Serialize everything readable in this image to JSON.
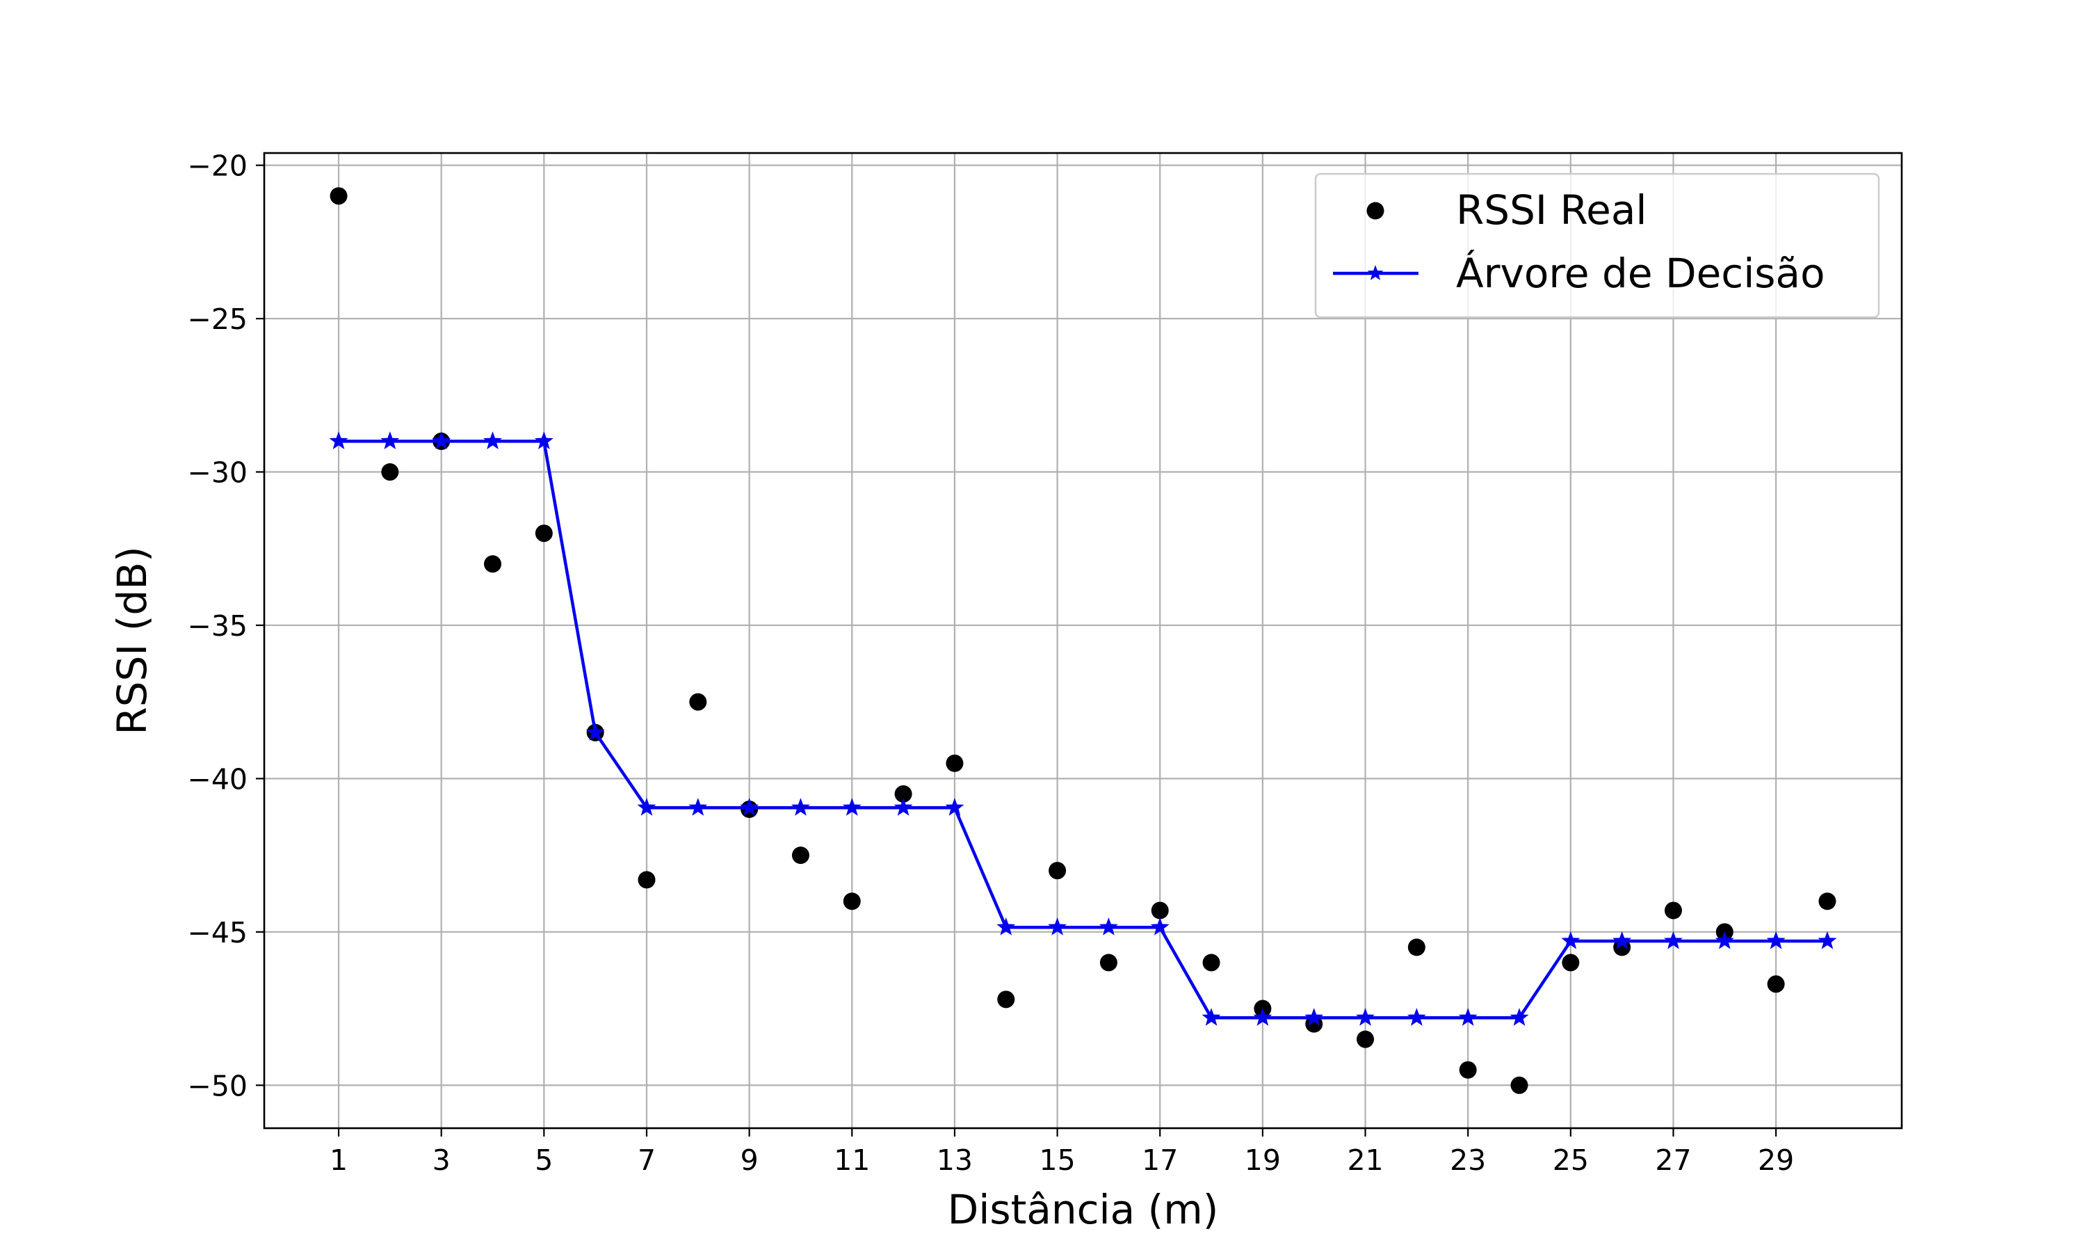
{
  "chart_data": {
    "type": "scatter+line",
    "title": "",
    "xlabel": "Distância (m)",
    "ylabel": "RSSI (dB)",
    "xlim": [
      -0.45,
      31.45
    ],
    "ylim": [
      -51.4,
      -19.6
    ],
    "xticks": [
      1,
      3,
      5,
      7,
      9,
      11,
      13,
      15,
      17,
      19,
      21,
      23,
      25,
      27,
      29
    ],
    "xtick_labels": [
      "1",
      "3",
      "5",
      "7",
      "9",
      "11",
      "13",
      "15",
      "17",
      "19",
      "21",
      "23",
      "25",
      "27",
      "29"
    ],
    "yticks": [
      -20,
      -25,
      -30,
      -35,
      -40,
      -45,
      -50
    ],
    "ytick_labels": [
      "−20",
      "−25",
      "−30",
      "−35",
      "−40",
      "−45",
      "−50"
    ],
    "grid": true,
    "legend_position": "top-right",
    "series": [
      {
        "name": "RSSI Real",
        "kind": "scatter",
        "color": "#000000",
        "marker": "circle",
        "x": [
          1,
          2,
          3,
          4,
          5,
          6,
          7,
          8,
          9,
          10,
          11,
          12,
          13,
          14,
          15,
          16,
          17,
          18,
          19,
          20,
          21,
          22,
          23,
          24,
          25,
          26,
          27,
          28,
          29,
          30
        ],
        "y": [
          -21,
          -30,
          -29,
          -33,
          -32,
          -38.5,
          -43.3,
          -37.5,
          -41,
          -42.5,
          -44,
          -40.5,
          -39.5,
          -47.2,
          -43,
          -46,
          -44.3,
          -46,
          -47.5,
          -48,
          -48.5,
          -45.5,
          -49.5,
          -50,
          -46,
          -45.5,
          -44.3,
          -45,
          -46.7,
          -44
        ]
      },
      {
        "name": "Árvore de Decisão",
        "kind": "line",
        "color": "#0000ee",
        "marker": "star",
        "x": [
          1,
          2,
          3,
          4,
          5,
          6,
          7,
          8,
          9,
          10,
          11,
          12,
          13,
          14,
          15,
          16,
          17,
          18,
          19,
          20,
          21,
          22,
          23,
          24,
          25,
          26,
          27,
          28,
          29,
          30
        ],
        "y": [
          -29,
          -29,
          -29,
          -29,
          -29,
          -38.5,
          -40.95,
          -40.95,
          -40.95,
          -40.95,
          -40.95,
          -40.95,
          -40.95,
          -44.85,
          -44.85,
          -44.85,
          -44.85,
          -47.8,
          -47.8,
          -47.8,
          -47.8,
          -47.8,
          -47.8,
          -47.8,
          -45.3,
          -45.3,
          -45.3,
          -45.3,
          -45.3,
          -45.3
        ]
      }
    ]
  }
}
